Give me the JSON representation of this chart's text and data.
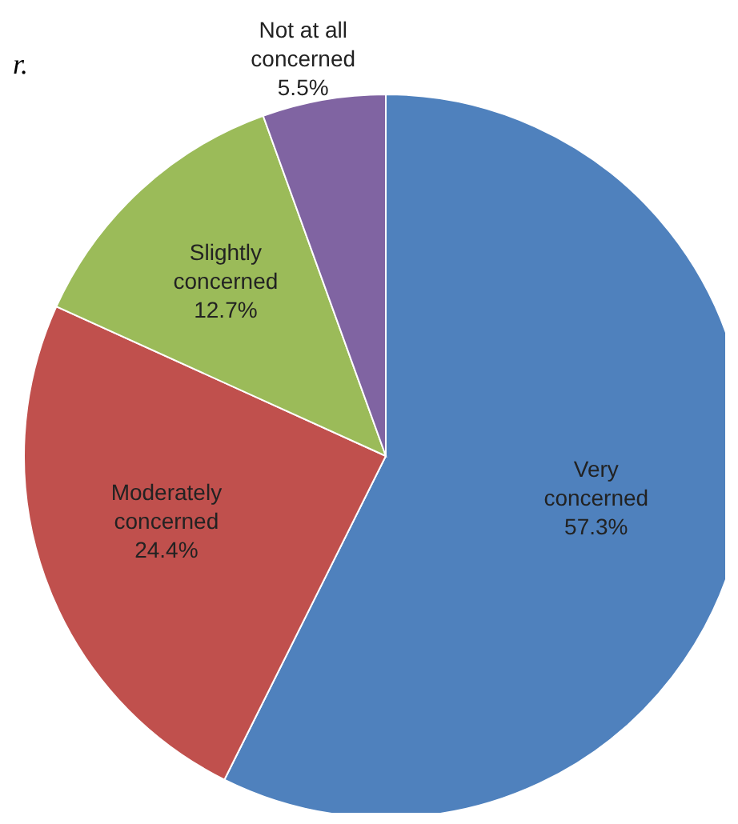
{
  "chart_data": {
    "type": "pie",
    "categories": [
      "Very concerned",
      "Moderately concerned",
      "Slightly concerned",
      "Not at all concerned"
    ],
    "values": [
      57.3,
      24.4,
      12.7,
      5.5
    ],
    "value_labels": [
      "57.3%",
      "24.4%",
      "12.7%",
      "5.5%"
    ],
    "colors": [
      "#4f81bd",
      "#c0504d",
      "#9bbb59",
      "#8064a2"
    ],
    "annotations": [
      "r."
    ]
  }
}
